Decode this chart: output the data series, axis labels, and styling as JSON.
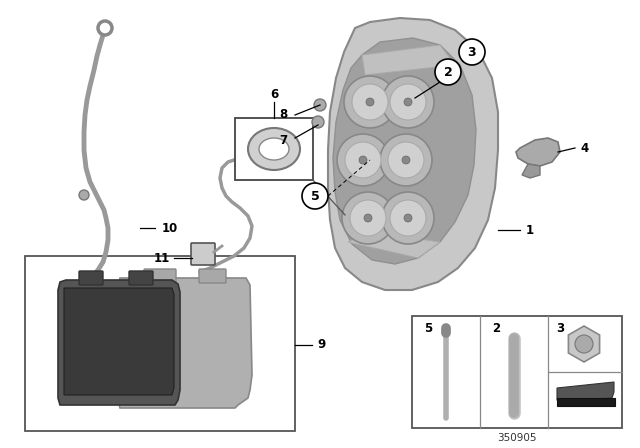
{
  "bg_color": "#ffffff",
  "part_number": "350905",
  "fig_width": 6.4,
  "fig_height": 4.48,
  "caliper_outer_color": "#c8c8c8",
  "caliper_inner_color": "#b0b0b0",
  "caliper_dark_color": "#909090",
  "caliper_shadow_color": "#787878",
  "line_color": "#999999",
  "pad_dark_color": "#4a4a4a",
  "pad_light_color": "#aaaaaa",
  "label_color": "#000000",
  "box_line_color": "#555555"
}
